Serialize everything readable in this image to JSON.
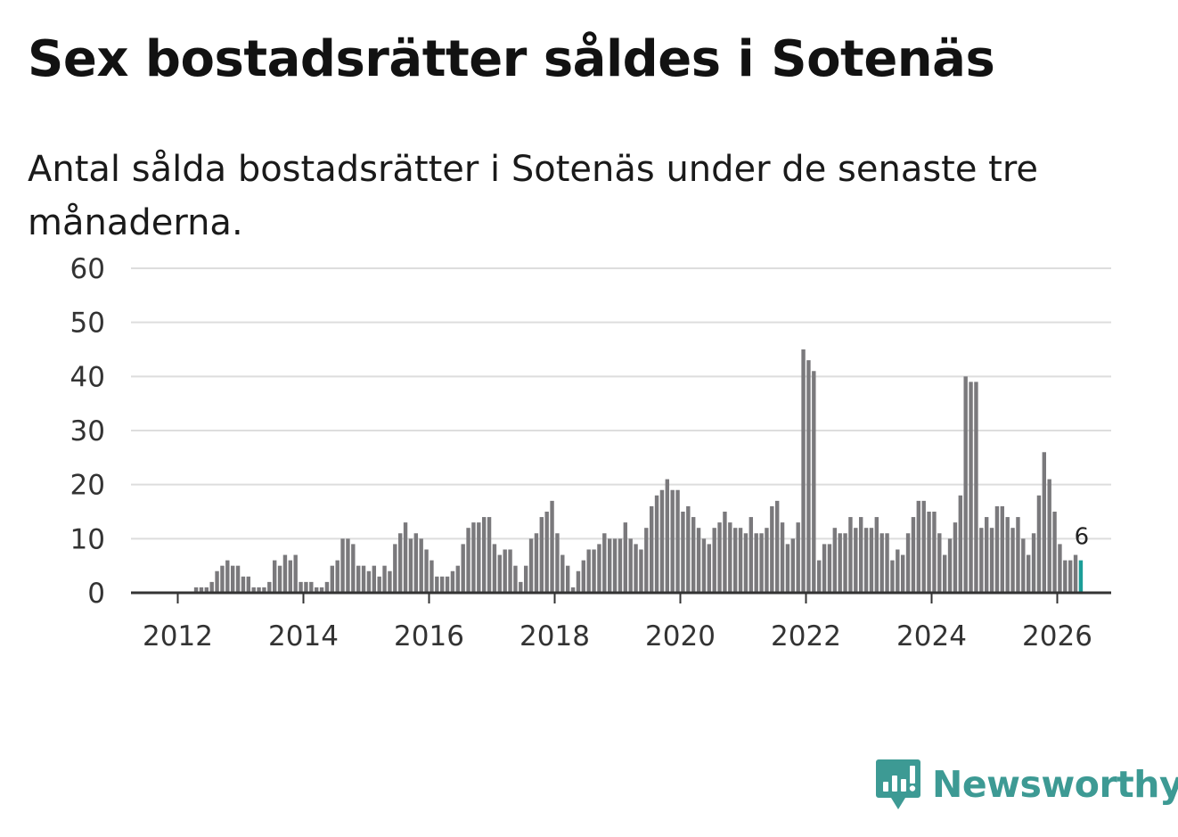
{
  "title": "Sex bostadsrätter såldes i Sotenäs",
  "subtitle": "Antal sålda bostadsrätter i Sotenäs under de senaste tre månaderna.",
  "brand": {
    "name": "Newsworthy",
    "color": "#3d9a94",
    "icon": "newsworthy-logo-icon"
  },
  "colors": {
    "bar": "#7a797c",
    "highlight": "#1b9e98",
    "grid": "#dddddd",
    "axis": "#333333"
  },
  "chart_data": {
    "type": "bar",
    "title": "Sex bostadsrätter såldes i Sotenäs",
    "xlabel": "",
    "ylabel": "",
    "ylim": [
      0,
      60
    ],
    "yticks": [
      "0",
      "10",
      "20",
      "30",
      "40",
      "50",
      "60"
    ],
    "xticks": [
      "2012",
      "2014",
      "2016",
      "2018",
      "2020",
      "2022",
      "2024",
      "2026"
    ],
    "start": "2011-07",
    "grid": true,
    "highlight_last": true,
    "last_label": "6",
    "values": [
      0,
      0,
      0,
      0,
      0,
      0,
      0,
      0,
      0,
      1,
      1,
      1,
      2,
      4,
      5,
      6,
      5,
      5,
      3,
      3,
      1,
      1,
      1,
      2,
      6,
      5,
      7,
      6,
      7,
      2,
      2,
      2,
      1,
      1,
      2,
      5,
      6,
      10,
      10,
      9,
      5,
      5,
      4,
      5,
      3,
      5,
      4,
      9,
      11,
      13,
      10,
      11,
      10,
      8,
      6,
      3,
      3,
      3,
      4,
      5,
      9,
      12,
      13,
      13,
      14,
      14,
      9,
      7,
      8,
      8,
      5,
      2,
      5,
      10,
      11,
      14,
      15,
      17,
      11,
      7,
      5,
      1,
      4,
      6,
      8,
      8,
      9,
      11,
      10,
      10,
      10,
      13,
      10,
      9,
      8,
      12,
      16,
      18,
      19,
      21,
      19,
      19,
      15,
      16,
      14,
      12,
      10,
      9,
      12,
      13,
      15,
      13,
      12,
      12,
      11,
      14,
      11,
      11,
      12,
      16,
      17,
      13,
      9,
      10,
      13,
      45,
      43,
      41,
      6,
      9,
      9,
      12,
      11,
      11,
      14,
      12,
      14,
      12,
      12,
      14,
      11,
      11,
      6,
      8,
      7,
      11,
      14,
      17,
      17,
      15,
      15,
      11,
      7,
      10,
      13,
      18,
      40,
      39,
      39,
      12,
      14,
      12,
      16,
      16,
      14,
      12,
      14,
      10,
      7,
      11,
      18,
      26,
      21,
      15,
      9,
      6,
      6,
      7,
      6
    ]
  }
}
